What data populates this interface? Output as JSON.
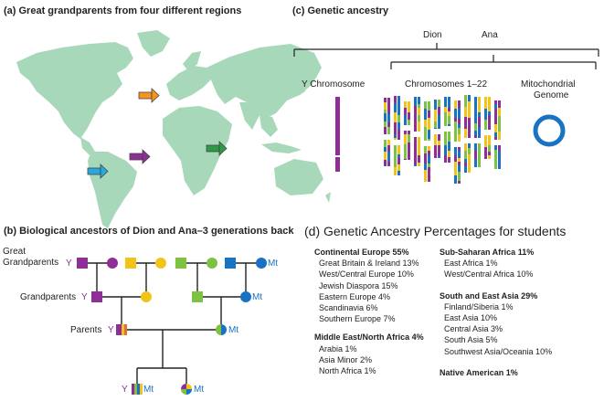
{
  "panel_a": {
    "title": "(a) Great grandparents from four different regions",
    "colors": {
      "land": "#a8d8ba",
      "orange": "#f7941d",
      "purple": "#8e2e97",
      "blue": "#29a8df",
      "green": "#2e9a47"
    },
    "arrows": [
      "orange-arrow",
      "purple-arrow",
      "blue-arrow",
      "green-arrow"
    ]
  },
  "panel_b": {
    "title": "(b) Biological ancestors of Dion and Ana–3 generations back",
    "row_great": "Great\nGrandparents",
    "row_grand": "Grandparents",
    "row_parents": "Parents",
    "y": "Y",
    "mt": "Mt"
  },
  "panel_c": {
    "title": "(c) Genetic ancestry",
    "dion": "Dion",
    "ana": "Ana",
    "y_chromosome": "Y Chromosome",
    "chromosomes": "Chromosomes 1–22",
    "mito_1": "Mitochondrial",
    "mito_2": "Genome",
    "colors": {
      "purple": "#8e2e97",
      "blue": "#1a73c2",
      "yellow": "#f2c31b",
      "green": "#7dc242"
    }
  },
  "panel_d": {
    "title": "(d) Genetic Ancestry Percentages for students",
    "left": [
      {
        "group": "Continental Europe 55%",
        "items": [
          "Great Britain & Ireland 13%",
          "West/Central Europe 10%",
          "Jewish Diaspora 15%",
          "Eastern Europe 4%",
          "Scandinavia 6%",
          "Southern Europe 7%"
        ]
      },
      {
        "group": "Middle East/North Africa 4%",
        "items": [
          "Arabia 1%",
          "Asia Minor 2%",
          "North Africa 1%"
        ]
      }
    ],
    "right": [
      {
        "group": "Sub-Saharan Africa 11%",
        "items": [
          "East Africa 1%",
          "West/Central Africa 10%"
        ]
      },
      {
        "group": "South and East Asia 29%",
        "items": [
          "Finland/Siberia 1%",
          "East Asia 10%",
          "Central Asia 3%",
          "South Asia 5%",
          "Southwest Asia/Oceania 10%"
        ]
      },
      {
        "group": "Native American 1%",
        "items": []
      }
    ]
  }
}
